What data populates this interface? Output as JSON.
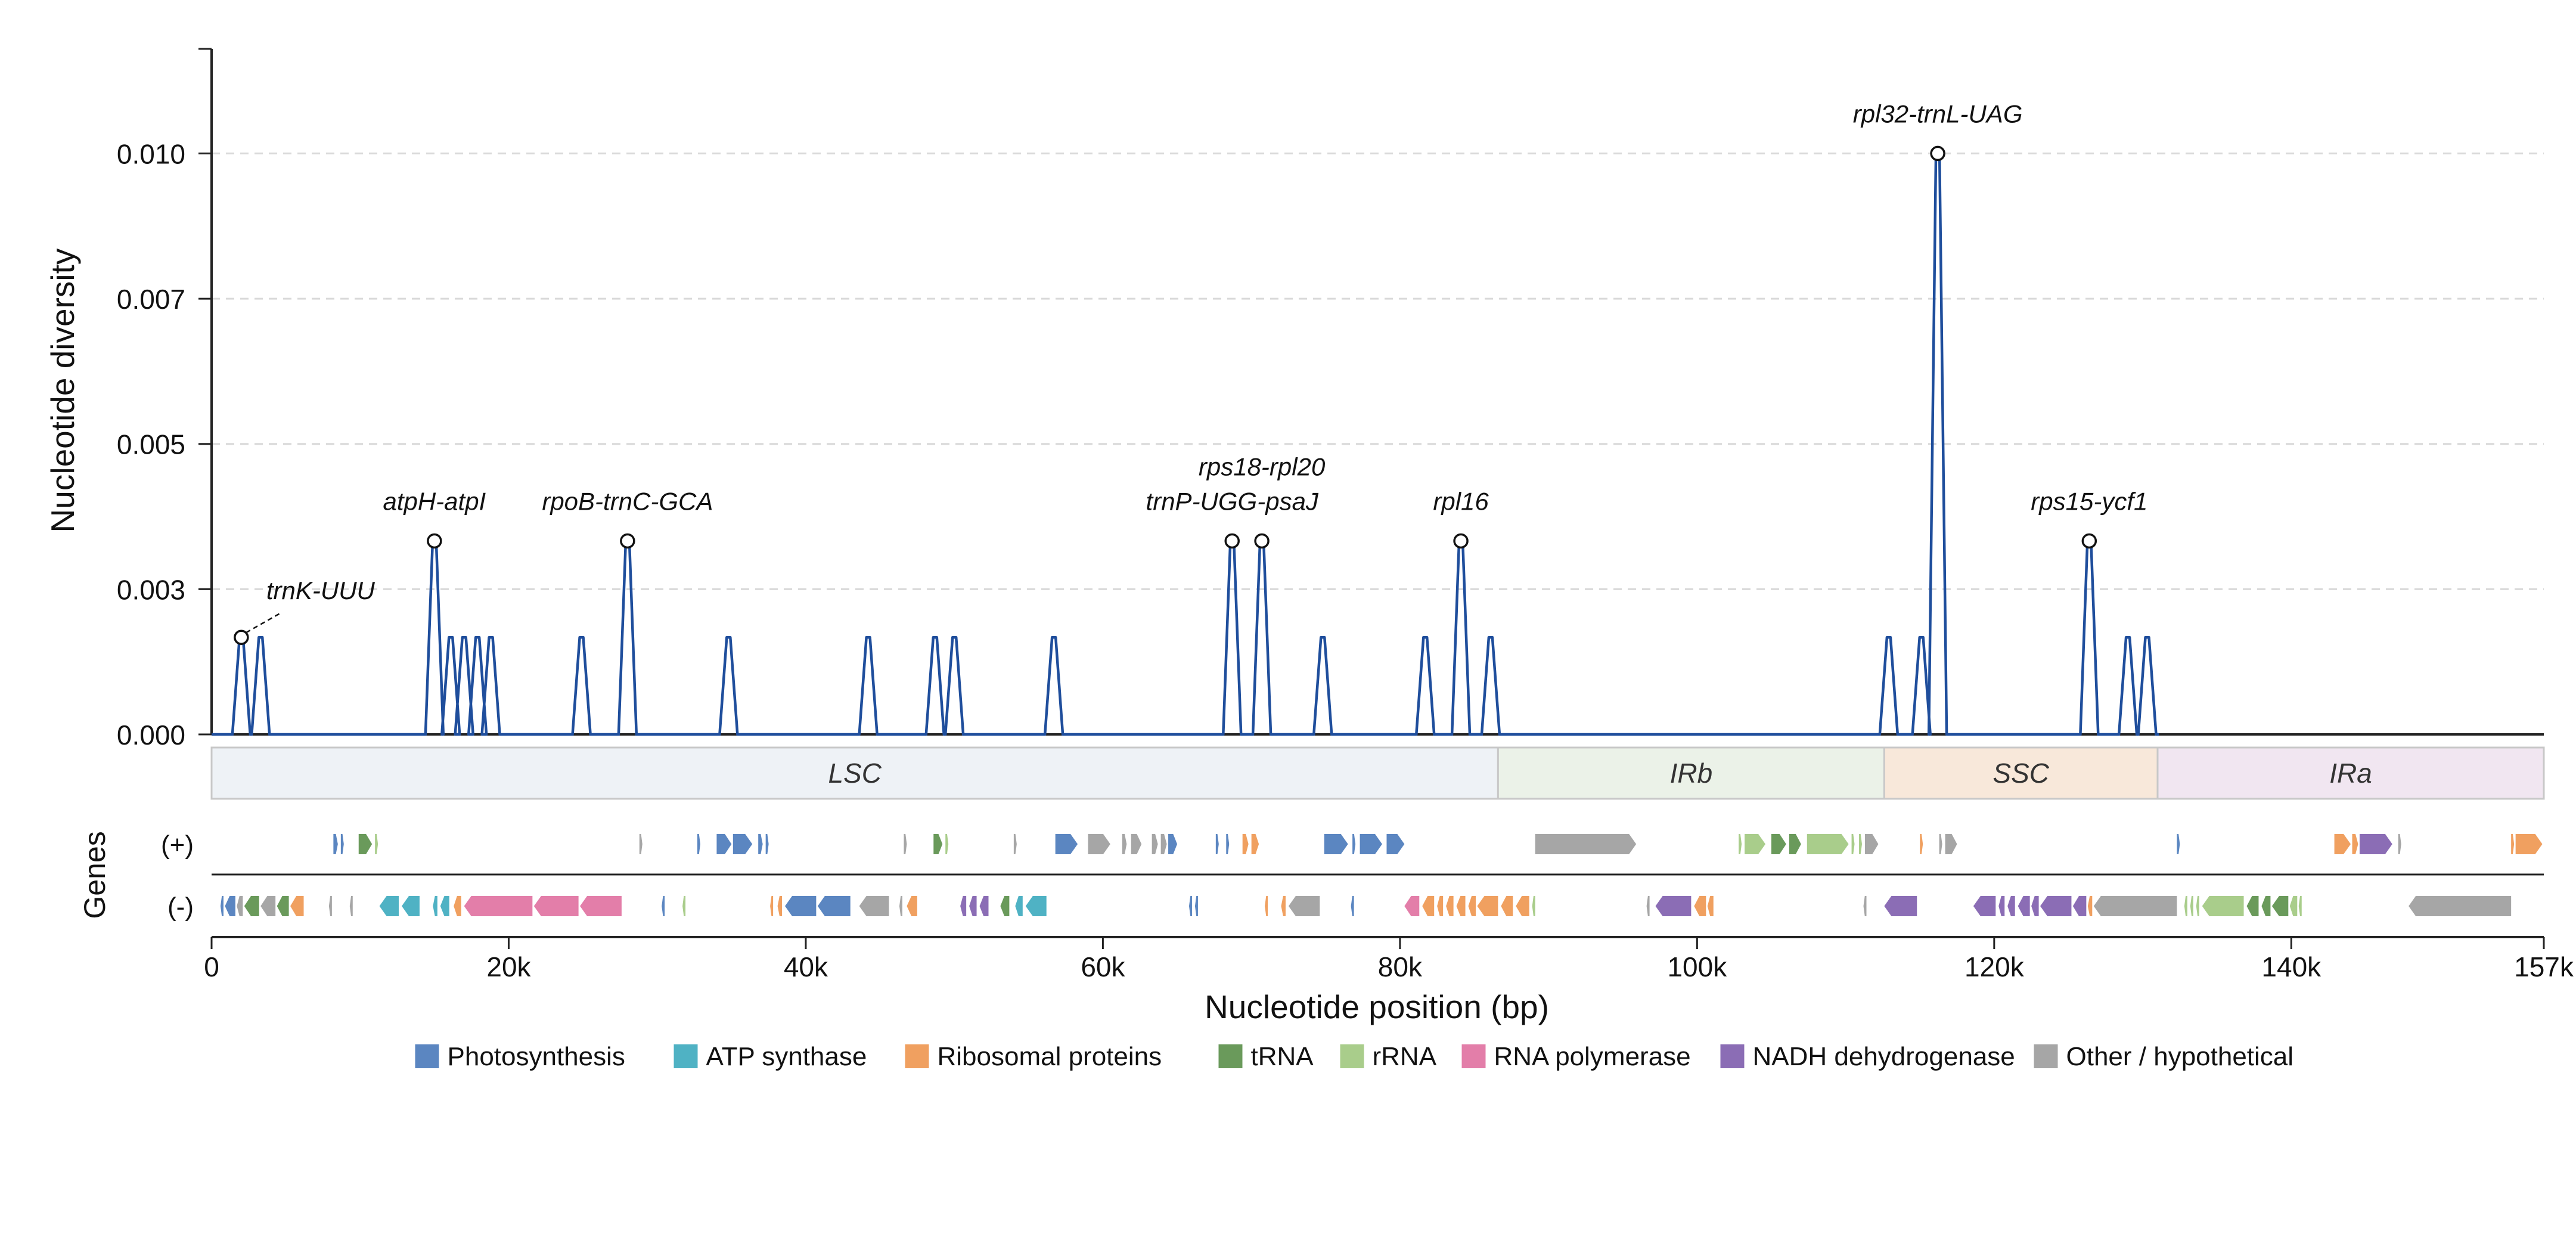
{
  "chart_data": {
    "type": "line",
    "title": "",
    "xlabel": "Nucleotide position (bp)",
    "ylabel": "Nucleotide diversity",
    "xlim": [
      0,
      157000
    ],
    "ylim": [
      0,
      0.0118
    ],
    "x_ticks": [
      0,
      20000,
      40000,
      60000,
      80000,
      100000,
      120000,
      140000,
      157000
    ],
    "x_tick_labels": [
      "0",
      "20k",
      "40k",
      "60k",
      "80k",
      "100k",
      "120k",
      "140k",
      "157k"
    ],
    "y_ticks": [
      0,
      0.0025,
      0.005,
      0.0075,
      0.01
    ],
    "y_tick_labels": [
      "0.000",
      "0.003",
      "0.005",
      "0.007",
      "0.010"
    ],
    "grid": "horizontal dashed",
    "colors": {
      "line": "#1f4e9c",
      "grid": "#d9d9d9",
      "axis": "#222222"
    },
    "peaks": [
      {
        "x": 2000,
        "y": 0.00167
      },
      {
        "x": 3300,
        "y": 0.00167
      },
      {
        "x": 15000,
        "y": 0.00333
      },
      {
        "x": 16100,
        "y": 0.00167
      },
      {
        "x": 17000,
        "y": 0.00167
      },
      {
        "x": 17900,
        "y": 0.00167
      },
      {
        "x": 18800,
        "y": 0.00167
      },
      {
        "x": 24900,
        "y": 0.00167
      },
      {
        "x": 28000,
        "y": 0.00333
      },
      {
        "x": 34800,
        "y": 0.00167
      },
      {
        "x": 44200,
        "y": 0.00167
      },
      {
        "x": 48700,
        "y": 0.00167
      },
      {
        "x": 50000,
        "y": 0.00167
      },
      {
        "x": 56700,
        "y": 0.00167
      },
      {
        "x": 68700,
        "y": 0.00333
      },
      {
        "x": 70700,
        "y": 0.00333
      },
      {
        "x": 74800,
        "y": 0.00167
      },
      {
        "x": 81700,
        "y": 0.00167
      },
      {
        "x": 84100,
        "y": 0.00333
      },
      {
        "x": 86100,
        "y": 0.00167
      },
      {
        "x": 112900,
        "y": 0.00167
      },
      {
        "x": 115100,
        "y": 0.00167
      },
      {
        "x": 116200,
        "y": 0.01
      },
      {
        "x": 126400,
        "y": 0.00333
      },
      {
        "x": 129000,
        "y": 0.00167
      },
      {
        "x": 130300,
        "y": 0.00167
      }
    ],
    "annotations": [
      {
        "label": "trnK-UUU",
        "x": 2000,
        "y": 0.00167,
        "leader": true
      },
      {
        "label": "atpH-atpI",
        "x": 15000,
        "y": 0.00333
      },
      {
        "label": "rpoB-trnC-GCA",
        "x": 28000,
        "y": 0.00333
      },
      {
        "label": "trnP-UGG-psaJ",
        "x": 68700,
        "y": 0.00333
      },
      {
        "label": "rps18-rpl20",
        "x": 70700,
        "y": 0.00333
      },
      {
        "label": "rpl16",
        "x": 84100,
        "y": 0.00333
      },
      {
        "label": "rpl32-trnL-UAG",
        "x": 116200,
        "y": 0.01
      },
      {
        "label": "rps15-ycf1",
        "x": 126400,
        "y": 0.00333
      }
    ],
    "regions": [
      {
        "name": "LSC",
        "start": 0,
        "end": 86600,
        "color": "#eef2f6"
      },
      {
        "name": "IRb",
        "start": 86600,
        "end": 112600,
        "color": "#ebf2e8"
      },
      {
        "name": "SSC",
        "start": 112600,
        "end": 131000,
        "color": "#f8e8da"
      },
      {
        "name": "IRa",
        "start": 131000,
        "end": 157000,
        "color": "#f1e6f1"
      }
    ],
    "gene_track": {
      "label": "Genes",
      "strand_labels": [
        "(+)",
        "(-)"
      ],
      "plus": [
        {
          "s": 8200,
          "e": 8500,
          "c": "photo"
        },
        {
          "s": 8700,
          "e": 8900,
          "c": "photo"
        },
        {
          "s": 9900,
          "e": 10800,
          "c": "trna"
        },
        {
          "s": 11000,
          "e": 11200,
          "c": "rrna"
        },
        {
          "s": 28800,
          "e": 29000,
          "c": "other"
        },
        {
          "s": 32700,
          "e": 32900,
          "c": "photo"
        },
        {
          "s": 34000,
          "e": 35000,
          "c": "photo"
        },
        {
          "s": 35100,
          "e": 36400,
          "c": "photo"
        },
        {
          "s": 36800,
          "e": 37100,
          "c": "photo"
        },
        {
          "s": 37300,
          "e": 37500,
          "c": "photo"
        },
        {
          "s": 46600,
          "e": 46800,
          "c": "other"
        },
        {
          "s": 48600,
          "e": 49200,
          "c": "trna"
        },
        {
          "s": 49400,
          "e": 49600,
          "c": "rrna"
        },
        {
          "s": 54000,
          "e": 54200,
          "c": "other"
        },
        {
          "s": 56800,
          "e": 58300,
          "c": "photo"
        },
        {
          "s": 59000,
          "e": 60500,
          "c": "other"
        },
        {
          "s": 61300,
          "e": 61600,
          "c": "other"
        },
        {
          "s": 61900,
          "e": 62600,
          "c": "other"
        },
        {
          "s": 63300,
          "e": 63700,
          "c": "other"
        },
        {
          "s": 63900,
          "e": 64300,
          "c": "other"
        },
        {
          "s": 64400,
          "e": 65000,
          "c": "photo"
        },
        {
          "s": 67600,
          "e": 67800,
          "c": "photo"
        },
        {
          "s": 68300,
          "e": 68500,
          "c": "photo"
        },
        {
          "s": 69400,
          "e": 69800,
          "c": "ribo"
        },
        {
          "s": 70000,
          "e": 70500,
          "c": "ribo"
        },
        {
          "s": 74900,
          "e": 76500,
          "c": "photo"
        },
        {
          "s": 76800,
          "e": 77000,
          "c": "photo"
        },
        {
          "s": 77300,
          "e": 78800,
          "c": "photo"
        },
        {
          "s": 79100,
          "e": 80300,
          "c": "photo"
        },
        {
          "s": 89100,
          "e": 95900,
          "c": "other"
        },
        {
          "s": 102800,
          "e": 103000,
          "c": "rrna"
        },
        {
          "s": 103200,
          "e": 104600,
          "c": "rrna"
        },
        {
          "s": 105000,
          "e": 106000,
          "c": "trna"
        },
        {
          "s": 106200,
          "e": 107000,
          "c": "trna"
        },
        {
          "s": 107400,
          "e": 110200,
          "c": "rrna"
        },
        {
          "s": 110400,
          "e": 110600,
          "c": "rrna"
        },
        {
          "s": 110900,
          "e": 111100,
          "c": "rrna"
        },
        {
          "s": 111300,
          "e": 112200,
          "c": "other"
        },
        {
          "s": 115000,
          "e": 115200,
          "c": "ribo"
        },
        {
          "s": 116300,
          "e": 116500,
          "c": "other"
        },
        {
          "s": 116700,
          "e": 117500,
          "c": "other"
        },
        {
          "s": 132300,
          "e": 132500,
          "c": "photo"
        },
        {
          "s": 142900,
          "e": 144000,
          "c": "ribo"
        },
        {
          "s": 144100,
          "e": 144500,
          "c": "ribo"
        },
        {
          "s": 144600,
          "e": 146800,
          "c": "nadh"
        },
        {
          "s": 147200,
          "e": 147400,
          "c": "other"
        },
        {
          "s": 154800,
          "e": 155000,
          "c": "ribo"
        },
        {
          "s": 155100,
          "e": 156900,
          "c": "ribo"
        }
      ],
      "minus": [
        {
          "s": 600,
          "e": 800,
          "c": "photo"
        },
        {
          "s": 900,
          "e": 1600,
          "c": "photo"
        },
        {
          "s": 1700,
          "e": 2100,
          "c": "other"
        },
        {
          "s": 2200,
          "e": 3200,
          "c": "trna"
        },
        {
          "s": 3300,
          "e": 4300,
          "c": "other"
        },
        {
          "s": 4400,
          "e": 5200,
          "c": "trna"
        },
        {
          "s": 5300,
          "e": 6200,
          "c": "ribo"
        },
        {
          "s": 7900,
          "e": 8100,
          "c": "other"
        },
        {
          "s": 9300,
          "e": 9500,
          "c": "other"
        },
        {
          "s": 11300,
          "e": 12600,
          "c": "atp"
        },
        {
          "s": 12800,
          "e": 14000,
          "c": "atp"
        },
        {
          "s": 14900,
          "e": 15200,
          "c": "atp"
        },
        {
          "s": 15400,
          "e": 16000,
          "c": "atp"
        },
        {
          "s": 16300,
          "e": 16800,
          "c": "ribo"
        },
        {
          "s": 17000,
          "e": 21600,
          "c": "rnap"
        },
        {
          "s": 21700,
          "e": 24700,
          "c": "rnap"
        },
        {
          "s": 24800,
          "e": 27600,
          "c": "rnap"
        },
        {
          "s": 30300,
          "e": 30500,
          "c": "photo"
        },
        {
          "s": 31700,
          "e": 31900,
          "c": "rrna"
        },
        {
          "s": 37600,
          "e": 37800,
          "c": "ribo"
        },
        {
          "s": 38100,
          "e": 38400,
          "c": "ribo"
        },
        {
          "s": 38600,
          "e": 40700,
          "c": "photo"
        },
        {
          "s": 40800,
          "e": 43000,
          "c": "photo"
        },
        {
          "s": 43600,
          "e": 45600,
          "c": "other"
        },
        {
          "s": 46300,
          "e": 46500,
          "c": "other"
        },
        {
          "s": 46800,
          "e": 47500,
          "c": "ribo"
        },
        {
          "s": 50400,
          "e": 50800,
          "c": "nadh"
        },
        {
          "s": 51000,
          "e": 51500,
          "c": "nadh"
        },
        {
          "s": 51700,
          "e": 52300,
          "c": "nadh"
        },
        {
          "s": 53100,
          "e": 53700,
          "c": "trna"
        },
        {
          "s": 54100,
          "e": 54600,
          "c": "atp"
        },
        {
          "s": 54800,
          "e": 56200,
          "c": "atp"
        },
        {
          "s": 65800,
          "e": 66000,
          "c": "photo"
        },
        {
          "s": 66200,
          "e": 66400,
          "c": "photo"
        },
        {
          "s": 70900,
          "e": 71100,
          "c": "ribo"
        },
        {
          "s": 72000,
          "e": 72300,
          "c": "ribo"
        },
        {
          "s": 72500,
          "e": 74600,
          "c": "other"
        },
        {
          "s": 76700,
          "e": 76900,
          "c": "photo"
        },
        {
          "s": 80300,
          "e": 81300,
          "c": "rnap"
        },
        {
          "s": 81500,
          "e": 82300,
          "c": "ribo"
        },
        {
          "s": 82500,
          "e": 82900,
          "c": "ribo"
        },
        {
          "s": 83100,
          "e": 83600,
          "c": "ribo"
        },
        {
          "s": 83800,
          "e": 84400,
          "c": "ribo"
        },
        {
          "s": 84600,
          "e": 85100,
          "c": "ribo"
        },
        {
          "s": 85200,
          "e": 86600,
          "c": "ribo"
        },
        {
          "s": 86800,
          "e": 87600,
          "c": "ribo"
        },
        {
          "s": 87800,
          "e": 88700,
          "c": "ribo"
        },
        {
          "s": 88900,
          "e": 89100,
          "c": "rrna"
        },
        {
          "s": 96600,
          "e": 96800,
          "c": "other"
        },
        {
          "s": 97200,
          "e": 99600,
          "c": "nadh"
        },
        {
          "s": 99800,
          "e": 100600,
          "c": "ribo"
        },
        {
          "s": 100700,
          "e": 101100,
          "c": "ribo"
        },
        {
          "s": 111200,
          "e": 111400,
          "c": "other"
        },
        {
          "s": 112600,
          "e": 114800,
          "c": "nadh"
        },
        {
          "s": 118600,
          "e": 120100,
          "c": "nadh"
        },
        {
          "s": 120300,
          "e": 120700,
          "c": "nadh"
        },
        {
          "s": 120900,
          "e": 121400,
          "c": "nadh"
        },
        {
          "s": 121600,
          "e": 122400,
          "c": "nadh"
        },
        {
          "s": 122500,
          "e": 123000,
          "c": "nadh"
        },
        {
          "s": 123100,
          "e": 125200,
          "c": "nadh"
        },
        {
          "s": 125300,
          "e": 126200,
          "c": "nadh"
        },
        {
          "s": 126300,
          "e": 126600,
          "c": "ribo"
        },
        {
          "s": 126700,
          "e": 132300,
          "c": "other"
        },
        {
          "s": 132800,
          "e": 133000,
          "c": "rrna"
        },
        {
          "s": 133200,
          "e": 133400,
          "c": "rrna"
        },
        {
          "s": 133600,
          "e": 133800,
          "c": "rrna"
        },
        {
          "s": 134000,
          "e": 136800,
          "c": "rrna"
        },
        {
          "s": 137000,
          "e": 137800,
          "c": "trna"
        },
        {
          "s": 138000,
          "e": 138600,
          "c": "trna"
        },
        {
          "s": 138700,
          "e": 139800,
          "c": "trna"
        },
        {
          "s": 139900,
          "e": 140400,
          "c": "rrna"
        },
        {
          "s": 140500,
          "e": 140700,
          "c": "rrna"
        },
        {
          "s": 147900,
          "e": 154800,
          "c": "other"
        }
      ]
    },
    "legend": {
      "placement": "bottom-center",
      "entries": [
        {
          "key": "photo",
          "label": "Photosynthesis",
          "color": "#5b86c1"
        },
        {
          "key": "atp",
          "label": "ATP synthase",
          "color": "#4fb2c4"
        },
        {
          "key": "ribo",
          "label": "Ribosomal proteins",
          "color": "#f0a060"
        },
        {
          "key": "trna",
          "label": "tRNA",
          "color": "#6a9a5b"
        },
        {
          "key": "rrna",
          "label": "rRNA",
          "color": "#a9cd8b"
        },
        {
          "key": "rnap",
          "label": "RNA polymerase",
          "color": "#e37ea9"
        },
        {
          "key": "nadh",
          "label": "NADH dehydrogenase",
          "color": "#8b6db5"
        },
        {
          "key": "other",
          "label": "Other / hypothetical",
          "color": "#a6a6a6"
        }
      ]
    }
  }
}
